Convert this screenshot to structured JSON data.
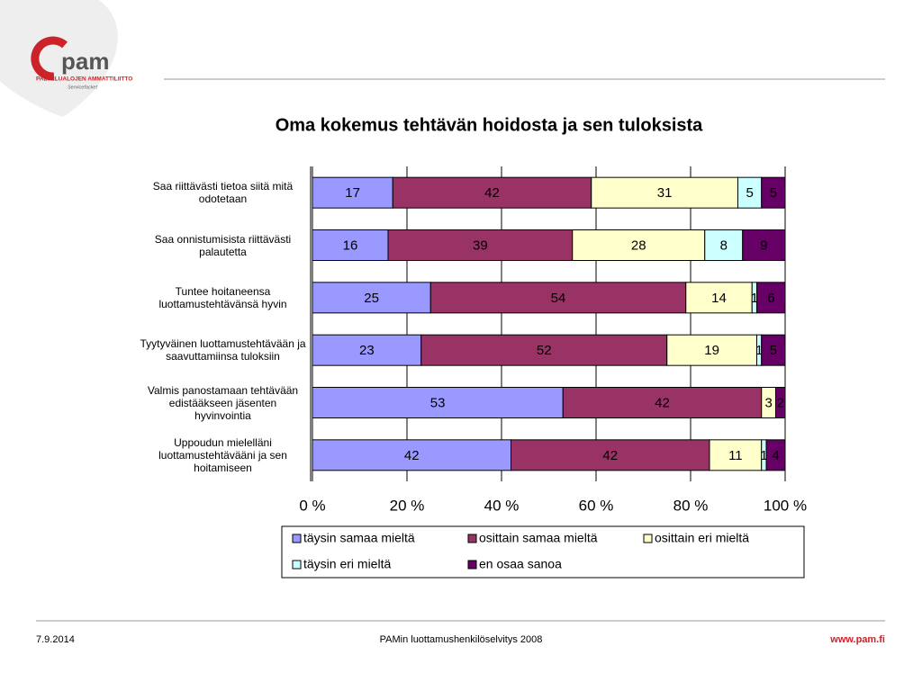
{
  "logo": {
    "name": "pam",
    "line1": "PALVELUALOJEN AMMATTILIITTO",
    "line2": "Servicefacket"
  },
  "chart_data": {
    "type": "stacked_barh",
    "title": "Oma kokemus tehtävän hoidosta ja sen tuloksista",
    "categories": [
      "Saa riittävästi tietoa siitä mitä odotetaan",
      "Saa onnistumisista riittävästi palautetta",
      "Tuntee hoitaneensa luottamustehtävänsä hyvin",
      "Tyytyväinen luottamustehtävään ja saavuttamiinsa tuloksiin",
      "Valmis panostamaan tehtävään edistääkseen jäsenten hyvinvointia",
      "Uppoudun mielelläni luottamustehtävääni ja sen hoitamiseen"
    ],
    "series": [
      {
        "name": "täysin samaa mieltä",
        "color": "#9999ff",
        "values": [
          17,
          16,
          25,
          23,
          53,
          42
        ]
      },
      {
        "name": "osittain samaa mieltä",
        "color": "#993366",
        "values": [
          42,
          39,
          54,
          52,
          42,
          42
        ]
      },
      {
        "name": "osittain eri mieltä",
        "color": "#ffffcc",
        "values": [
          31,
          28,
          14,
          19,
          3,
          11
        ]
      },
      {
        "name": "täysin eri mieltä",
        "color": "#ccffff",
        "values": [
          5,
          8,
          1,
          1,
          0,
          1
        ]
      },
      {
        "name": "en osaa sanoa",
        "color": "#660066",
        "values": [
          5,
          9,
          6,
          5,
          2,
          4
        ]
      }
    ],
    "xlim": [
      0,
      100
    ],
    "xticks": [
      {
        "value": 0,
        "label": "0 %"
      },
      {
        "value": 20,
        "label": "20 %"
      },
      {
        "value": 40,
        "label": "40 %"
      },
      {
        "value": 60,
        "label": "60 %"
      },
      {
        "value": 80,
        "label": "80 %"
      },
      {
        "value": 100,
        "label": "100 %"
      }
    ],
    "grid": true
  },
  "footer": {
    "date": "7.9.2014",
    "center": "PAMin luottamushenkilöselvitys 2008",
    "url": "www.pam.fi"
  }
}
